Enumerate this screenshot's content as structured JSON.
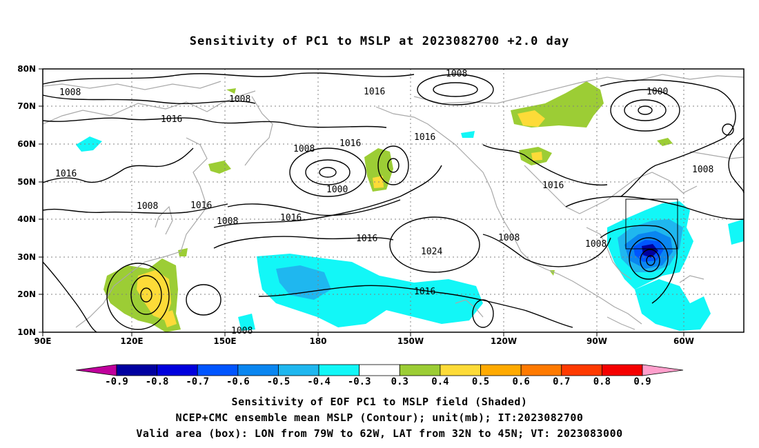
{
  "title": "Sensitivity of PC1 to MSLP at 2023082700 +2.0 day",
  "axes": {
    "lat_labels": [
      "80N",
      "70N",
      "60N",
      "50N",
      "40N",
      "30N",
      "20N",
      "10N"
    ],
    "lon_labels": [
      "90E",
      "120E",
      "150E",
      "180",
      "150W",
      "120W",
      "90W",
      "60W"
    ]
  },
  "contour_labels": [
    {
      "text": "1008"
    },
    {
      "text": "1008"
    },
    {
      "text": "1016"
    },
    {
      "text": "1008"
    },
    {
      "text": "1016"
    },
    {
      "text": "1000"
    },
    {
      "text": "1008"
    },
    {
      "text": "1016"
    },
    {
      "text": "1008"
    },
    {
      "text": "1016"
    },
    {
      "text": "1016"
    },
    {
      "text": "1016"
    },
    {
      "text": "1008"
    },
    {
      "text": "1016"
    },
    {
      "text": "1000"
    },
    {
      "text": "1008"
    },
    {
      "text": "1016"
    },
    {
      "text": "1008"
    },
    {
      "text": "1024"
    },
    {
      "text": "1016"
    },
    {
      "text": "1008"
    },
    {
      "text": "1016"
    },
    {
      "text": "1008"
    }
  ],
  "colorbar": {
    "labels": [
      "-0.9",
      "-0.8",
      "-0.7",
      "-0.6",
      "-0.5",
      "-0.4",
      "-0.3",
      "0.3",
      "0.4",
      "0.5",
      "0.6",
      "0.7",
      "0.8",
      "0.9"
    ],
    "colors": [
      "#0000a0",
      "#0000dd",
      "#0055ff",
      "#0a86f0",
      "#1fb7ef",
      "#12f7f7",
      "#ffffff",
      "#9ccd35",
      "#fddb38",
      "#ffaa00",
      "#ff7a00",
      "#ff3a00",
      "#f50000"
    ],
    "left_arrow_color": "#c0009c",
    "right_arrow_color": "#ff9fcc"
  },
  "captions": {
    "line1": "Sensitivity of EOF PC1 to MSLP field (Shaded)",
    "line2": "NCEP+CMC ensemble mean MSLP (Contour); unit(mb); IT:2023082700",
    "line3": "Valid area (box): LON from 79W to 62W, LAT from 32N to 45N; VT: 2023083000"
  },
  "valid_box": {
    "lon_from": "79W",
    "lon_to": "62W",
    "lat_from": "32N",
    "lat_to": "45N"
  }
}
